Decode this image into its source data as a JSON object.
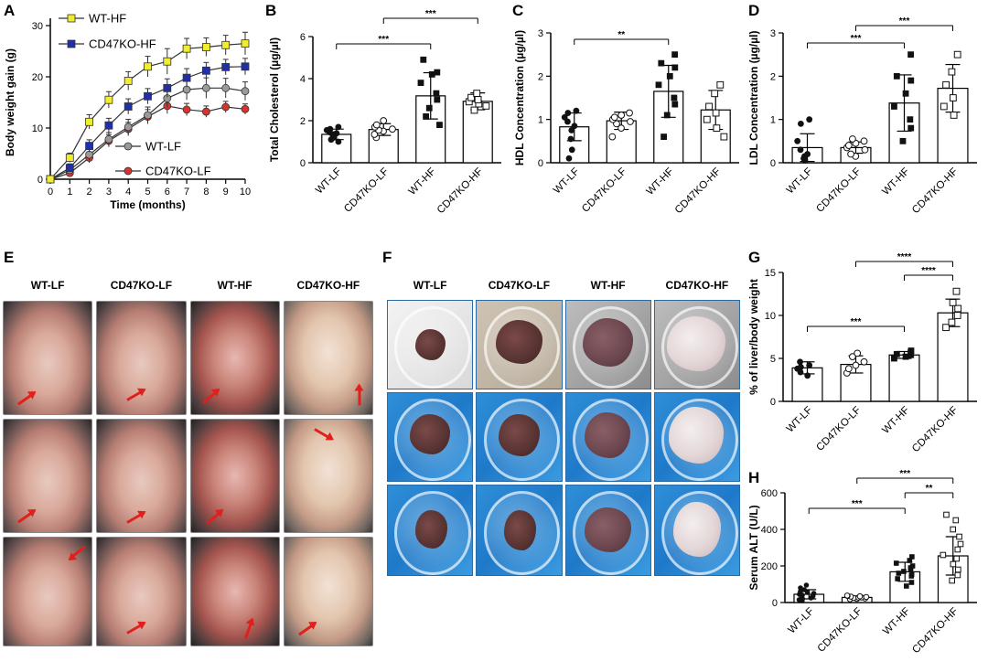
{
  "panels": {
    "a": "A",
    "b": "B",
    "c": "C",
    "d": "D",
    "e": "E",
    "f": "F",
    "g": "G",
    "h": "H"
  },
  "chart_data": [
    {
      "id": "A",
      "type": "line",
      "ylabel": "Body weight gain (g)",
      "xlabel": "Time (months)",
      "xlim": [
        0,
        10
      ],
      "ylim": [
        0,
        30
      ],
      "x_ticks": [
        0,
        1,
        2,
        3,
        4,
        5,
        6,
        7,
        8,
        9,
        10
      ],
      "y_ticks": [
        0,
        10,
        20,
        30
      ],
      "x": [
        0,
        1,
        2,
        3,
        4,
        5,
        6,
        7,
        8,
        9,
        10
      ],
      "series": [
        {
          "name": "WT-HF",
          "color": "#f0ec2e",
          "marker": "square",
          "values": [
            0,
            4.2,
            11.2,
            15.5,
            19.2,
            22,
            23,
            25.5,
            25.8,
            26.2,
            26.5
          ],
          "errors": [
            0.3,
            0.9,
            1.4,
            1.6,
            1.8,
            2.0,
            2.5,
            2.0,
            1.8,
            1.9,
            2.2
          ]
        },
        {
          "name": "CD47KO-HF",
          "color": "#2130a8",
          "marker": "square",
          "values": [
            0,
            2.2,
            6.5,
            10.5,
            14.2,
            16.2,
            17.8,
            19.8,
            21.2,
            21.9,
            22
          ],
          "errors": [
            0.3,
            0.8,
            1.2,
            1.4,
            1.5,
            1.5,
            1.8,
            1.8,
            1.6,
            1.5,
            1.6
          ]
        },
        {
          "name": "WT-LF",
          "color": "#9a9a9a",
          "marker": "circle",
          "values": [
            0,
            1.8,
            4.8,
            7.8,
            10.2,
            12.5,
            15.8,
            17.5,
            17.8,
            17.8,
            17.2
          ],
          "errors": [
            0.3,
            0.7,
            1.1,
            1.3,
            1.5,
            1.6,
            1.8,
            2.0,
            2.0,
            1.9,
            1.8
          ]
        },
        {
          "name": "CD47KO-LF",
          "color": "#d9332e",
          "marker": "circle",
          "values": [
            0,
            1.2,
            4.2,
            7.5,
            9.8,
            12.2,
            14.3,
            13.6,
            13.2,
            14.1,
            13.7
          ],
          "errors": [
            0.3,
            0.6,
            1.0,
            1.2,
            1.3,
            1.4,
            1.5,
            1.2,
            1.1,
            1.1,
            1.0
          ]
        }
      ]
    },
    {
      "id": "B",
      "type": "bar",
      "ylabel": "Total Cholesterol (µg/µl)",
      "categories": [
        "WT-LF",
        "CD47KO-LF",
        "WT-HF",
        "CD47KO-HF"
      ],
      "means": [
        1.35,
        1.58,
        3.18,
        2.92
      ],
      "errors": [
        0.25,
        0.28,
        1.1,
        0.4
      ],
      "ylim": [
        0,
        6
      ],
      "y_ticks": [
        0,
        2,
        4,
        6
      ],
      "points": [
        [
          1.0,
          1.1,
          1.2,
          1.3,
          1.35,
          1.4,
          1.45,
          1.55,
          1.6,
          1.7
        ],
        [
          1.2,
          1.35,
          1.5,
          1.55,
          1.6,
          1.7,
          1.8,
          2.0
        ],
        [
          1.8,
          2.2,
          2.6,
          3.0,
          3.3,
          3.8,
          4.2,
          4.3,
          4.9
        ],
        [
          2.5,
          2.7,
          2.8,
          2.9,
          3.0,
          3.1,
          3.3
        ]
      ],
      "significance": [
        {
          "from": 0,
          "to": 2,
          "label": "***"
        },
        {
          "from": 1,
          "to": 3,
          "label": "***"
        }
      ]
    },
    {
      "id": "C",
      "type": "bar",
      "ylabel": "HDL Concentration (µg/µl)",
      "categories": [
        "WT-LF",
        "CD47KO-LF",
        "WT-HF",
        "CD47KO-HF"
      ],
      "means": [
        0.83,
        0.97,
        1.65,
        1.22
      ],
      "errors": [
        0.32,
        0.2,
        0.6,
        0.45
      ],
      "ylim": [
        0,
        3
      ],
      "y_ticks": [
        0,
        1,
        2,
        3
      ],
      "points": [
        [
          0.1,
          0.3,
          0.55,
          0.75,
          0.85,
          0.95,
          1.05,
          1.15,
          1.2
        ],
        [
          0.6,
          0.8,
          0.9,
          0.95,
          1.0,
          1.05,
          1.1,
          1.15
        ],
        [
          0.6,
          1.1,
          1.35,
          1.5,
          1.8,
          2.0,
          2.2,
          2.3,
          2.5
        ],
        [
          0.6,
          0.8,
          1.0,
          1.15,
          1.3,
          1.6,
          1.8
        ]
      ],
      "significance": [
        {
          "from": 0,
          "to": 2,
          "label": "**"
        }
      ]
    },
    {
      "id": "D",
      "type": "bar",
      "ylabel": "LDL Concentration (µg/µl)",
      "categories": [
        "WT-LF",
        "CD47KO-LF",
        "WT-HF",
        "CD47KO-HF"
      ],
      "means": [
        0.35,
        0.35,
        1.38,
        1.72
      ],
      "errors": [
        0.32,
        0.13,
        0.65,
        0.55
      ],
      "ylim": [
        0,
        3
      ],
      "y_ticks": [
        0,
        1,
        2,
        3
      ],
      "points": [
        [
          0.05,
          0.1,
          0.15,
          0.2,
          0.3,
          0.5,
          0.9,
          1.0
        ],
        [
          0.15,
          0.2,
          0.3,
          0.35,
          0.4,
          0.45,
          0.5,
          0.55
        ],
        [
          0.5,
          0.8,
          1.0,
          1.3,
          1.6,
          1.9,
          2.0,
          2.5
        ],
        [
          1.1,
          1.3,
          1.5,
          1.8,
          2.1,
          2.5
        ]
      ],
      "significance": [
        {
          "from": 0,
          "to": 2,
          "label": "***"
        },
        {
          "from": 1,
          "to": 3,
          "label": "***"
        }
      ]
    },
    {
      "id": "G",
      "type": "bar",
      "ylabel": "% of liver/body weight",
      "categories": [
        "WT-LF",
        "CD47KO-LF",
        "WT-HF",
        "CD47KO-HF"
      ],
      "means": [
        3.9,
        4.3,
        5.4,
        10.3
      ],
      "errors": [
        0.7,
        1.0,
        0.4,
        1.6
      ],
      "ylim": [
        0,
        15
      ],
      "y_ticks": [
        0,
        5,
        10,
        15
      ],
      "points": [
        [
          3.0,
          3.4,
          3.8,
          4.0,
          4.2,
          4.6
        ],
        [
          3.3,
          3.8,
          4.2,
          4.6,
          5.2,
          5.6
        ],
        [
          5.0,
          5.2,
          5.4,
          5.5,
          5.7,
          5.9
        ],
        [
          8.6,
          9.2,
          10.0,
          10.8,
          11.5,
          12.8
        ]
      ],
      "significance": [
        {
          "from": 0,
          "to": 2,
          "label": "***"
        },
        {
          "from": 1,
          "to": 3,
          "label": "****"
        },
        {
          "from": 2,
          "to": 3,
          "label": "****"
        }
      ]
    },
    {
      "id": "H",
      "type": "bar",
      "ylabel": "Serum ALT (U/L)",
      "categories": [
        "WT-LF",
        "CD47KO-LF",
        "WT-HF",
        "CD47KO-HF"
      ],
      "means": [
        45,
        28,
        168,
        255
      ],
      "errors": [
        25,
        8,
        52,
        105
      ],
      "ylim": [
        0,
        600
      ],
      "y_ticks": [
        0,
        200,
        400,
        600
      ],
      "points": [
        [
          10,
          15,
          20,
          25,
          30,
          35,
          40,
          45,
          50,
          55,
          60,
          70,
          80,
          95
        ],
        [
          18,
          20,
          22,
          25,
          27,
          28,
          30,
          32,
          34,
          36,
          38
        ],
        [
          90,
          110,
          130,
          145,
          155,
          160,
          170,
          180,
          190,
          200,
          215,
          230,
          250
        ],
        [
          120,
          150,
          180,
          210,
          240,
          260,
          290,
          320,
          360,
          400,
          450,
          480
        ]
      ],
      "significance": [
        {
          "from": 0,
          "to": 2,
          "label": "***"
        },
        {
          "from": 1,
          "to": 3,
          "label": "***"
        },
        {
          "from": 2,
          "to": 3,
          "label": "**"
        }
      ]
    }
  ],
  "panel_e": {
    "headers": [
      "WT-LF",
      "CD47KO-LF",
      "WT-HF",
      "CD47KO-HF"
    ]
  },
  "panel_f": {
    "headers": [
      "WT-LF",
      "CD47KO-LF",
      "WT-HF",
      "CD47KO-HF"
    ]
  }
}
